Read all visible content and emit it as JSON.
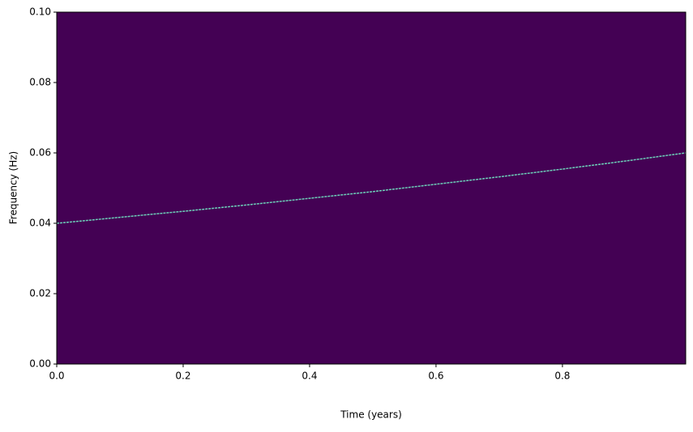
{
  "chart_data": {
    "type": "spectrogram",
    "xlabel": "Time (years)",
    "ylabel": "Frequency (Hz)",
    "background": "#440154",
    "x": [
      0,
      0.1,
      0.2,
      0.3,
      0.4,
      0.5,
      0.6,
      0.7,
      0.8,
      0.9,
      0.995
    ],
    "series": [
      {
        "color": "#6ccfb8",
        "values": [
          0.04,
          0.0417,
          0.0434,
          0.0452,
          0.0471,
          0.049,
          0.0511,
          0.0532,
          0.0554,
          0.0577,
          0.06
        ]
      }
    ],
    "xlim": [
      0,
      0.995
    ],
    "ylim": [
      0,
      0.1
    ],
    "xticks": [
      {
        "value": 0,
        "label": "0.0"
      },
      0.2,
      0.4,
      0.6,
      0.8
    ],
    "yticks": [
      {
        "value": 0,
        "label": "0.00"
      },
      {
        "value": 0.02,
        "label": "0.02"
      },
      {
        "value": 0.04,
        "label": "0.04"
      },
      {
        "value": 0.06,
        "label": "0.06"
      },
      {
        "value": 0.08,
        "label": "0.08"
      },
      {
        "value": 0.1,
        "label": "0.10"
      }
    ]
  }
}
